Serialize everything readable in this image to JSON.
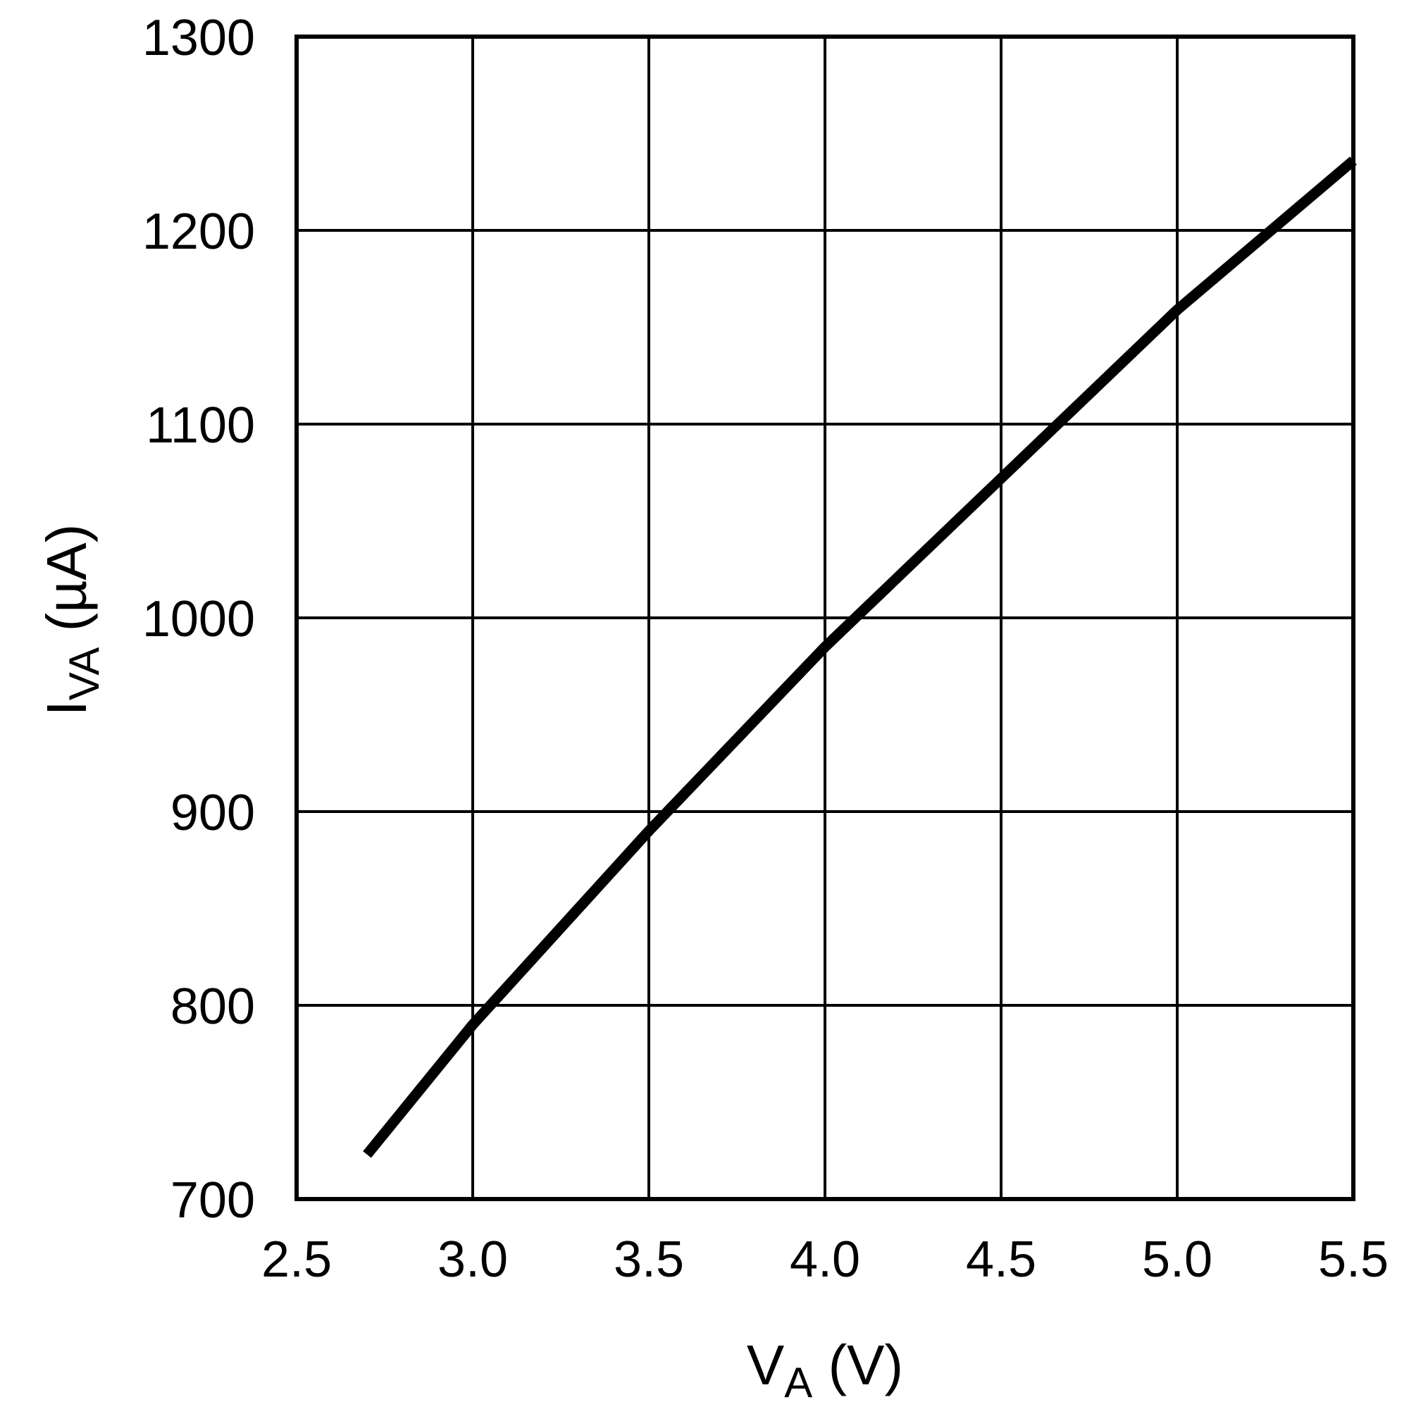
{
  "chart_data": {
    "type": "line",
    "xlabel": {
      "main": "V",
      "sub": "A",
      "unit": " (V)"
    },
    "ylabel": {
      "main": "I",
      "sub": "VA",
      "unit": " (µA)"
    },
    "xlim": [
      2.5,
      5.5
    ],
    "ylim": [
      700,
      1300
    ],
    "xticks": [
      "2.5",
      "3.0",
      "3.5",
      "4.0",
      "4.5",
      "5.0",
      "5.5"
    ],
    "yticks": [
      "700",
      "800",
      "900",
      "1000",
      "1100",
      "1200",
      "1300"
    ],
    "grid": true,
    "colors": {
      "line": "#000000",
      "grid": "#000000"
    },
    "series": [
      {
        "x": [
          2.7,
          3.0,
          3.5,
          4.0,
          4.5,
          5.0,
          5.5
        ],
        "y": [
          723,
          790,
          890,
          985,
          1072,
          1159,
          1236
        ]
      }
    ]
  }
}
